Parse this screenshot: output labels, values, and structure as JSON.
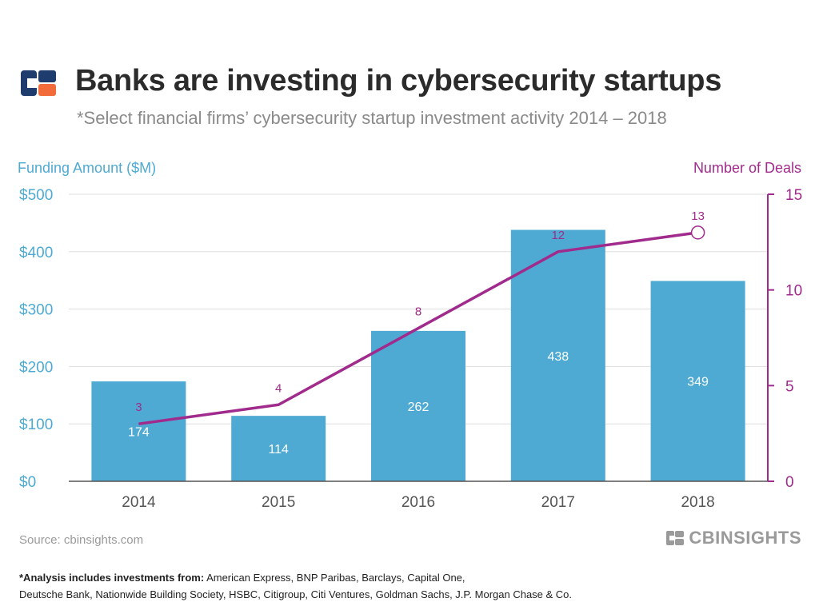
{
  "header": {
    "title": "Banks are investing in cybersecurity startups",
    "subtitle": "*Select financial firms’ cybersecurity startup investment activity 2014 – 2018"
  },
  "colors": {
    "bar": "#4eaad3",
    "line": "#a02b8c",
    "left_axis_text": "#4eaad3",
    "right_axis_text": "#a02b8c",
    "logo_navy": "#1f3c6e",
    "logo_orange": "#f26b3a"
  },
  "chart_data": {
    "type": "bar",
    "categories": [
      "2014",
      "2015",
      "2016",
      "2017",
      "2018"
    ],
    "series": [
      {
        "name": "Funding Amount ($M)",
        "type": "bar",
        "axis": "left",
        "values": [
          174,
          114,
          262,
          438,
          349
        ]
      },
      {
        "name": "Number of Deals",
        "type": "line",
        "axis": "right",
        "values": [
          3,
          4,
          8,
          12,
          13
        ]
      }
    ],
    "y_left": {
      "label": "Funding Amount ($M)",
      "range": [
        0,
        500
      ],
      "ticks": [
        0,
        100,
        200,
        300,
        400,
        500
      ],
      "tick_labels": [
        "$0",
        "$100",
        "$200",
        "$300",
        "$400",
        "$500"
      ]
    },
    "y_right": {
      "label": "Number of Deals",
      "range": [
        0,
        15
      ],
      "ticks": [
        0,
        5,
        10,
        15
      ],
      "tick_labels": [
        "0",
        "5",
        "10",
        "15"
      ]
    },
    "grid": true,
    "highlight_marker_index": 4
  },
  "footer": {
    "source": "Source: cbinsights.com",
    "brand": "CBINSIGHTS",
    "footnote_bold": "*Analysis includes investments from:",
    "footnote_line1": " American Express, BNP Paribas, Barclays, Capital One,",
    "footnote_line2": "Deutsche Bank, Nationwide Building Society, HSBC, Citigroup, Citi Ventures, Goldman Sachs, J.P. Morgan Chase & Co."
  }
}
